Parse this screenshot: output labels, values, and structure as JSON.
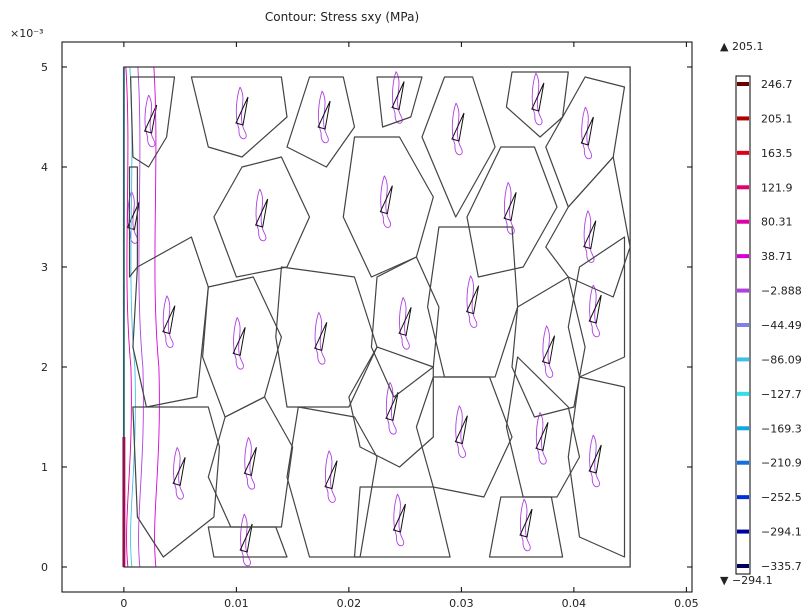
{
  "chart_data": {
    "type": "contour",
    "title": "Contour: Stress sxy (MPa)",
    "xlabel": "",
    "ylabel": "",
    "y_exponent_label": "×10⁻³",
    "xlim": [
      -0.0055,
      0.0505
    ],
    "ylim": [
      -0.00025,
      0.00525
    ],
    "x_ticks": [
      {
        "value": 0,
        "label": "0"
      },
      {
        "value": 0.01,
        "label": "0.01"
      },
      {
        "value": 0.02,
        "label": "0.02"
      },
      {
        "value": 0.03,
        "label": "0.03"
      },
      {
        "value": 0.04,
        "label": "0.04"
      },
      {
        "value": 0.05,
        "label": "0.05"
      }
    ],
    "y_ticks": [
      {
        "value": 0,
        "label": "0"
      },
      {
        "value": 0.001,
        "label": "1"
      },
      {
        "value": 0.002,
        "label": "2"
      },
      {
        "value": 0.003,
        "label": "3"
      },
      {
        "value": 0.004,
        "label": "4"
      },
      {
        "value": 0.005,
        "label": "5"
      }
    ],
    "domain": {
      "x": [
        0,
        0.045
      ],
      "y": [
        0,
        0.005
      ]
    },
    "grains": [
      [
        [
          0.0006,
          0.0049
        ],
        [
          0.0045,
          0.0049
        ],
        [
          0.0038,
          0.0043
        ],
        [
          0.0022,
          0.004
        ],
        [
          0.0008,
          0.0041
        ]
      ],
      [
        [
          0.006,
          0.0049
        ],
        [
          0.014,
          0.0049
        ],
        [
          0.0145,
          0.0045
        ],
        [
          0.0105,
          0.0041
        ],
        [
          0.0075,
          0.0042
        ]
      ],
      [
        [
          0.0165,
          0.0049
        ],
        [
          0.0195,
          0.0049
        ],
        [
          0.0205,
          0.0044
        ],
        [
          0.018,
          0.004
        ],
        [
          0.0145,
          0.0042
        ]
      ],
      [
        [
          0.0225,
          0.0049
        ],
        [
          0.0265,
          0.0049
        ],
        [
          0.0255,
          0.0045
        ],
        [
          0.023,
          0.0044
        ]
      ],
      [
        [
          0.0285,
          0.0049
        ],
        [
          0.031,
          0.0049
        ],
        [
          0.033,
          0.0042
        ],
        [
          0.0295,
          0.0035
        ],
        [
          0.0265,
          0.0043
        ]
      ],
      [
        [
          0.0345,
          0.00495
        ],
        [
          0.0395,
          0.00495
        ],
        [
          0.039,
          0.0045
        ],
        [
          0.037,
          0.0043
        ],
        [
          0.034,
          0.0046
        ]
      ],
      [
        [
          0.041,
          0.0049
        ],
        [
          0.0445,
          0.0048
        ],
        [
          0.0435,
          0.0041
        ],
        [
          0.0395,
          0.0036
        ],
        [
          0.0375,
          0.0042
        ]
      ],
      [
        [
          0.0005,
          0.004
        ],
        [
          0.0012,
          0.004
        ],
        [
          0.0012,
          0.003
        ],
        [
          0.0005,
          0.0029
        ]
      ],
      [
        [
          0.0105,
          0.004
        ],
        [
          0.014,
          0.0041
        ],
        [
          0.0165,
          0.0035
        ],
        [
          0.0145,
          0.003
        ],
        [
          0.01,
          0.0029
        ],
        [
          0.008,
          0.0035
        ]
      ],
      [
        [
          0.0205,
          0.0043
        ],
        [
          0.0245,
          0.0043
        ],
        [
          0.0275,
          0.0037
        ],
        [
          0.026,
          0.0031
        ],
        [
          0.022,
          0.0029
        ],
        [
          0.0195,
          0.0035
        ]
      ],
      [
        [
          0.0305,
          0.0035
        ],
        [
          0.0335,
          0.0042
        ],
        [
          0.0365,
          0.0042
        ],
        [
          0.0385,
          0.0036
        ],
        [
          0.0355,
          0.003
        ],
        [
          0.0315,
          0.0029
        ]
      ],
      [
        [
          0.0395,
          0.0036
        ],
        [
          0.0435,
          0.0041
        ],
        [
          0.045,
          0.0032
        ],
        [
          0.0435,
          0.0027
        ],
        [
          0.0395,
          0.0029
        ],
        [
          0.0375,
          0.0032
        ]
      ],
      [
        [
          0.0012,
          0.003
        ],
        [
          0.006,
          0.0033
        ],
        [
          0.0075,
          0.0028
        ],
        [
          0.0065,
          0.0017
        ],
        [
          0.002,
          0.0016
        ],
        [
          0.0008,
          0.0022
        ]
      ],
      [
        [
          0.0075,
          0.0028
        ],
        [
          0.0115,
          0.0029
        ],
        [
          0.014,
          0.0023
        ],
        [
          0.0125,
          0.0017
        ],
        [
          0.009,
          0.0015
        ],
        [
          0.007,
          0.0021
        ]
      ],
      [
        [
          0.014,
          0.003
        ],
        [
          0.0205,
          0.0029
        ],
        [
          0.0225,
          0.0022
        ],
        [
          0.02,
          0.0016
        ],
        [
          0.0145,
          0.0016
        ],
        [
          0.0135,
          0.0023
        ]
      ],
      [
        [
          0.0225,
          0.0029
        ],
        [
          0.026,
          0.0031
        ],
        [
          0.028,
          0.0026
        ],
        [
          0.0275,
          0.002
        ],
        [
          0.024,
          0.0017
        ],
        [
          0.022,
          0.0022
        ]
      ],
      [
        [
          0.028,
          0.0034
        ],
        [
          0.0345,
          0.0034
        ],
        [
          0.035,
          0.0026
        ],
        [
          0.033,
          0.0019
        ],
        [
          0.0285,
          0.0019
        ],
        [
          0.027,
          0.0026
        ]
      ],
      [
        [
          0.035,
          0.0026
        ],
        [
          0.0395,
          0.0029
        ],
        [
          0.041,
          0.0022
        ],
        [
          0.04,
          0.0016
        ],
        [
          0.0365,
          0.0015
        ],
        [
          0.0345,
          0.002
        ]
      ],
      [
        [
          0.0405,
          0.003
        ],
        [
          0.0445,
          0.0033
        ],
        [
          0.0445,
          0.0021
        ],
        [
          0.0405,
          0.0019
        ],
        [
          0.0395,
          0.0024
        ]
      ],
      [
        [
          0.0008,
          0.0016
        ],
        [
          0.0075,
          0.0016
        ],
        [
          0.0085,
          0.0012
        ],
        [
          0.008,
          0.0005
        ],
        [
          0.0035,
          0.0001
        ],
        [
          0.0012,
          0.0005
        ]
      ],
      [
        [
          0.009,
          0.0015
        ],
        [
          0.0125,
          0.0017
        ],
        [
          0.015,
          0.0012
        ],
        [
          0.014,
          0.0004
        ],
        [
          0.0095,
          0.0004
        ],
        [
          0.0075,
          0.0009
        ]
      ],
      [
        [
          0.0155,
          0.0016
        ],
        [
          0.0205,
          0.0015
        ],
        [
          0.0225,
          0.0011
        ],
        [
          0.021,
          0.0001
        ],
        [
          0.0165,
          0.0001
        ],
        [
          0.0145,
          0.0009
        ]
      ],
      [
        [
          0.0225,
          0.0022
        ],
        [
          0.0275,
          0.002
        ],
        [
          0.0275,
          0.0013
        ],
        [
          0.0245,
          0.001
        ],
        [
          0.021,
          0.0012
        ],
        [
          0.02,
          0.0017
        ]
      ],
      [
        [
          0.0275,
          0.0019
        ],
        [
          0.0325,
          0.0019
        ],
        [
          0.0345,
          0.0013
        ],
        [
          0.032,
          0.0007
        ],
        [
          0.0275,
          0.0008
        ],
        [
          0.026,
          0.0014
        ]
      ],
      [
        [
          0.035,
          0.0021
        ],
        [
          0.0395,
          0.0016
        ],
        [
          0.0405,
          0.0011
        ],
        [
          0.0385,
          0.0007
        ],
        [
          0.0355,
          0.0007
        ],
        [
          0.034,
          0.0014
        ]
      ],
      [
        [
          0.0405,
          0.0019
        ],
        [
          0.0445,
          0.0018
        ],
        [
          0.0445,
          0.0001
        ],
        [
          0.0405,
          0.0003
        ],
        [
          0.0395,
          0.0011
        ]
      ],
      [
        [
          0.0075,
          0.0004
        ],
        [
          0.0135,
          0.0004
        ],
        [
          0.0145,
          0.0001
        ],
        [
          0.008,
          0.0001
        ]
      ],
      [
        [
          0.021,
          0.0008
        ],
        [
          0.0275,
          0.0008
        ],
        [
          0.029,
          0.0001
        ],
        [
          0.0205,
          0.0001
        ]
      ],
      [
        [
          0.0335,
          0.0007
        ],
        [
          0.038,
          0.0007
        ],
        [
          0.039,
          0.0001
        ],
        [
          0.0325,
          0.0001
        ]
      ]
    ],
    "legend": {
      "max_label": "▲ 205.1",
      "min_label": "▼ −294.1",
      "levels": [
        {
          "value": 246.7,
          "label": "246.7",
          "color": "#6b0000"
        },
        {
          "value": 205.1,
          "label": "205.1",
          "color": "#b00000"
        },
        {
          "value": 163.5,
          "label": "163.5",
          "color": "#e00018"
        },
        {
          "value": 121.9,
          "label": "121.9",
          "color": "#e0006e"
        },
        {
          "value": 80.31,
          "label": "80.31",
          "color": "#e000a8"
        },
        {
          "value": 38.71,
          "label": "38.71",
          "color": "#d800d8"
        },
        {
          "value": -2.888,
          "label": "−2.888",
          "color": "#b040e0"
        },
        {
          "value": -44.49,
          "label": "−44.49",
          "color": "#8080e8"
        },
        {
          "value": -86.09,
          "label": "−86.09",
          "color": "#40c0e8"
        },
        {
          "value": -127.7,
          "label": "−127.7",
          "color": "#30e0e8"
        },
        {
          "value": -169.3,
          "label": "−169.3",
          "color": "#10a8e0"
        },
        {
          "value": -210.9,
          "label": "−210.9",
          "color": "#1070e0"
        },
        {
          "value": -252.5,
          "label": "−252.5",
          "color": "#0030d8"
        },
        {
          "value": -294.1,
          "label": "−294.1",
          "color": "#0000a0"
        },
        {
          "value": -335.7,
          "label": "−335.7",
          "color": "#000060"
        }
      ]
    }
  }
}
